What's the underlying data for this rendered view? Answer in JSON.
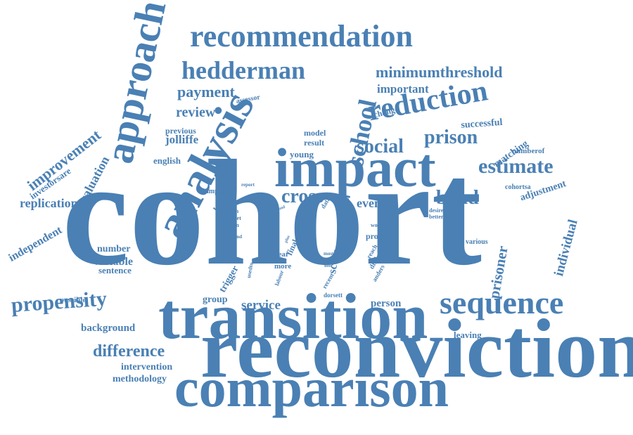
{
  "color": "#4a80b4",
  "words": [
    "cohort",
    "reconviction",
    "transition",
    "comparison",
    "impact",
    "analysis",
    "approach",
    "recommendation",
    "reduction",
    "sequence",
    "hedderman",
    "school",
    "estimate",
    "propensity",
    "cross",
    "bond",
    "social",
    "prison",
    "improvement",
    "payment",
    "review",
    "minimumthreshold",
    "difference",
    "replication",
    "investorsare",
    "evaluation",
    "independent",
    "event",
    "important",
    "individual",
    "adjustment",
    "prisoner",
    "successful",
    "matching",
    "jolliffe",
    "english",
    "service",
    "person",
    "score",
    "intervention",
    "methodology",
    "background",
    "variable",
    "sentence",
    "number",
    "group",
    "trigger",
    "leaving",
    "possible",
    "assessor",
    "change",
    "previous",
    "model",
    "result",
    "young",
    "numberof",
    "cohortsa",
    "various",
    "work",
    "sample",
    "month",
    "market",
    "option",
    "report",
    "trend",
    "data",
    "term",
    "desire",
    "better",
    "world",
    "proc",
    "final",
    "year",
    "more",
    "labour",
    "most",
    "team",
    "note",
    "reach",
    "difficult",
    "anders",
    "recent",
    "dorsett",
    "usedto",
    "fund",
    "plus",
    "part",
    "last"
  ]
}
